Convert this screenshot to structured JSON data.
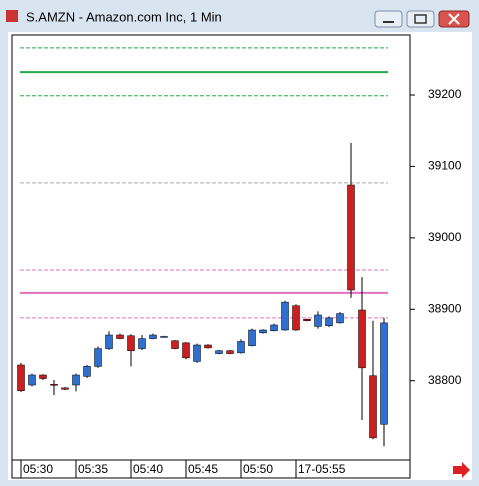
{
  "window": {
    "title": "S.AMZN - Amazon.com Inc, 1 Min"
  },
  "chart_data": {
    "type": "candlestick",
    "categories": [
      "05:30",
      null,
      null,
      null,
      null,
      "05:35",
      null,
      null,
      null,
      null,
      "05:40",
      null,
      null,
      null,
      null,
      "05:45",
      null,
      null,
      null,
      null,
      "05:50",
      null,
      null,
      null,
      null,
      "17-05:55",
      null,
      null,
      null,
      null,
      null,
      null,
      null,
      null
    ],
    "series": [
      {
        "up_color": "#2f6fd0",
        "down_color": "#cc1f1f",
        "open": [
          38822,
          38794,
          38808,
          38795,
          38790,
          38794,
          38806,
          38820,
          38845,
          38864,
          38863,
          38845,
          38859,
          38862,
          38856,
          38853,
          38827,
          38850,
          38838,
          38842,
          38839,
          38849,
          38867,
          38870,
          38871,
          38905,
          38886,
          38876,
          38877,
          38881,
          39074,
          38899,
          38807,
          38739
        ],
        "high": [
          38825,
          38810,
          38809,
          38801,
          38791,
          38810,
          38822,
          38848,
          38869,
          38866,
          38865,
          38864,
          38866,
          38863,
          38857,
          38854,
          38852,
          38851,
          38843,
          38843,
          38858,
          38873,
          38872,
          38880,
          38912,
          38907,
          38887,
          38897,
          38890,
          38896,
          39133,
          38945,
          38884,
          38888
        ],
        "low": [
          38784,
          38792,
          38801,
          38780,
          38787,
          38785,
          38804,
          38818,
          38843,
          38858,
          38820,
          38843,
          38858,
          38861,
          38844,
          38830,
          38825,
          38845,
          38837,
          38837,
          38838,
          38848,
          38866,
          38869,
          38870,
          38870,
          38883,
          38873,
          38875,
          38880,
          38916,
          38745,
          38718,
          38708
        ],
        "close": [
          38786,
          38808,
          38803,
          38794,
          38788,
          38808,
          38820,
          38845,
          38864,
          38859,
          38842,
          38859,
          38864,
          38862,
          38845,
          38832,
          38850,
          38846,
          38842,
          38838,
          38855,
          38871,
          38871,
          38878,
          38910,
          38871,
          38884,
          38892,
          38888,
          38894,
          38927,
          38818,
          38720,
          38881
        ]
      }
    ],
    "levels": [
      {
        "value": 39266,
        "color": "#22aa44",
        "style": "dashed"
      },
      {
        "value": 39232,
        "color": "#22aa44",
        "style": "solid"
      },
      {
        "value": 39199,
        "color": "#22aa44",
        "style": "dashed"
      },
      {
        "value": 39077,
        "color": "#aaaaaa",
        "style": "dashed"
      },
      {
        "value": 38955,
        "color": "#e070c0",
        "style": "dashed"
      },
      {
        "value": 38923,
        "color": "#e070c0",
        "style": "solid"
      },
      {
        "value": 38888,
        "color": "#e070c0",
        "style": "dashed"
      }
    ],
    "ylim": [
      38689,
      39284
    ],
    "yticks": [
      38800,
      38900,
      39000,
      39100,
      39200
    ],
    "grid": false
  }
}
